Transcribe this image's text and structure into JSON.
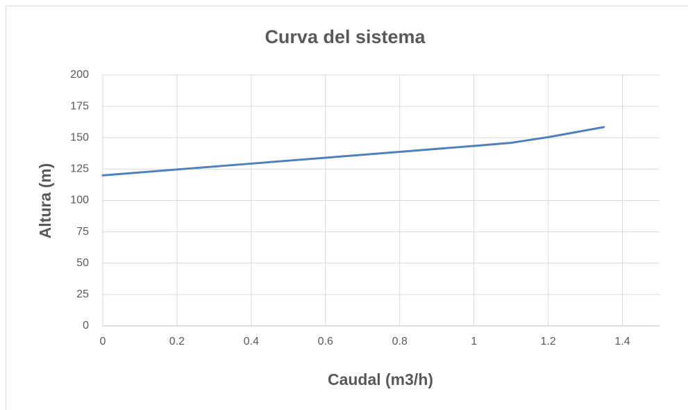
{
  "chart_data": {
    "type": "line",
    "title": "Curva del sistema",
    "x_label": "Caudal (m3/h)",
    "y_label": "Altura (m)",
    "x": [
      0,
      0.2,
      0.4,
      0.6,
      0.8,
      1.0,
      1.1,
      1.2,
      1.35
    ],
    "series": [
      {
        "name": "Curva del sistema",
        "color": "#4f81bd",
        "values": [
          120,
          124.7,
          129.4,
          134.1,
          138.8,
          143.5,
          146,
          150.5,
          158.5
        ]
      }
    ],
    "xlim": [
      0,
      1.5
    ],
    "xticks": [
      0,
      0.2,
      0.4,
      0.6,
      0.8,
      1,
      1.2,
      1.4
    ],
    "ylim": [
      0,
      200
    ],
    "yticks": [
      0,
      25,
      50,
      75,
      100,
      125,
      150,
      175,
      200
    ],
    "grid": true
  }
}
